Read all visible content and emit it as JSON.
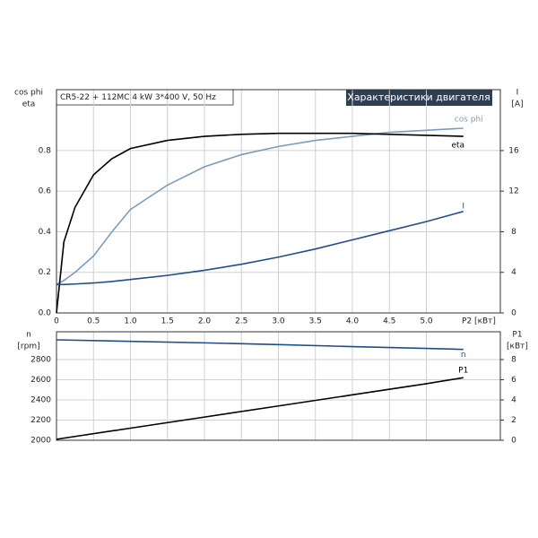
{
  "chart_data": [
    {
      "type": "line",
      "title": "Характеристики двигателя",
      "subtitle": "CR5-22 + 112MC   4 kW   3*400 V, 50 Hz",
      "xlabel": "P2 [кВт]",
      "ylabel": [
        "cos phi",
        "eta"
      ],
      "y2label": [
        "I",
        "[A]"
      ],
      "xlim": [
        0,
        6
      ],
      "xticks": [
        0,
        0.5,
        {
          "value": 1,
          "label": "1.0"
        },
        1.5,
        {
          "value": 2,
          "label": "2.0"
        },
        2.5,
        {
          "value": 3,
          "label": "3.0"
        },
        3.5,
        {
          "value": 4,
          "label": "4.0"
        },
        4.5,
        {
          "value": 5,
          "label": "5.0"
        }
      ],
      "ylim": [
        0,
        1.1
      ],
      "yticks": [
        {
          "value": 0,
          "label": "0.0"
        },
        0.2,
        0.4,
        0.6,
        0.8
      ],
      "y2lim": [
        0,
        22
      ],
      "y2ticks": [
        0,
        4,
        8,
        12,
        16
      ],
      "grid": true,
      "x": [
        0,
        0.1,
        0.25,
        0.5,
        0.75,
        1,
        1.5,
        2,
        2.5,
        3,
        3.5,
        4,
        4.5,
        5,
        5.5
      ],
      "series": [
        {
          "name": "cos phi",
          "color": "#7a9cbf",
          "values": [
            0.14,
            0.16,
            0.2,
            0.28,
            0.4,
            0.51,
            0.63,
            0.72,
            0.78,
            0.82,
            0.85,
            0.87,
            0.89,
            0.9,
            0.91
          ]
        },
        {
          "name": "eta",
          "color": "#000000",
          "values": [
            0,
            0.35,
            0.52,
            0.68,
            0.76,
            0.81,
            0.85,
            0.87,
            0.88,
            0.885,
            0.885,
            0.885,
            0.88,
            0.875,
            0.87
          ]
        },
        {
          "name": "I",
          "color": "#1f4e8c",
          "axis": "y2",
          "values": [
            2.8,
            2.8,
            2.85,
            2.95,
            3.1,
            3.3,
            3.7,
            4.2,
            4.8,
            5.5,
            6.3,
            7.2,
            8.1,
            9.0,
            10.0
          ]
        }
      ]
    },
    {
      "type": "line",
      "ylabel": [
        "n",
        "[rpm]"
      ],
      "y2label": [
        "P1",
        "[кВт]"
      ],
      "xlim": [
        0,
        6
      ],
      "ylim": [
        2000,
        3075
      ],
      "yticks": [
        2000,
        2200,
        2400,
        2600,
        2800
      ],
      "y2lim": [
        0,
        10.75
      ],
      "y2ticks": [
        0,
        2,
        4,
        6,
        8
      ],
      "grid": true,
      "x": [
        0,
        1,
        2,
        3,
        4,
        5,
        5.5
      ],
      "series": [
        {
          "name": "n",
          "color": "#1f4e8c",
          "values": [
            2995,
            2980,
            2965,
            2948,
            2928,
            2910,
            2900
          ]
        },
        {
          "name": "P1",
          "color": "#000000",
          "axis": "y2",
          "values": [
            0.1,
            1.2,
            2.3,
            3.4,
            4.5,
            5.6,
            6.2
          ]
        }
      ]
    }
  ]
}
